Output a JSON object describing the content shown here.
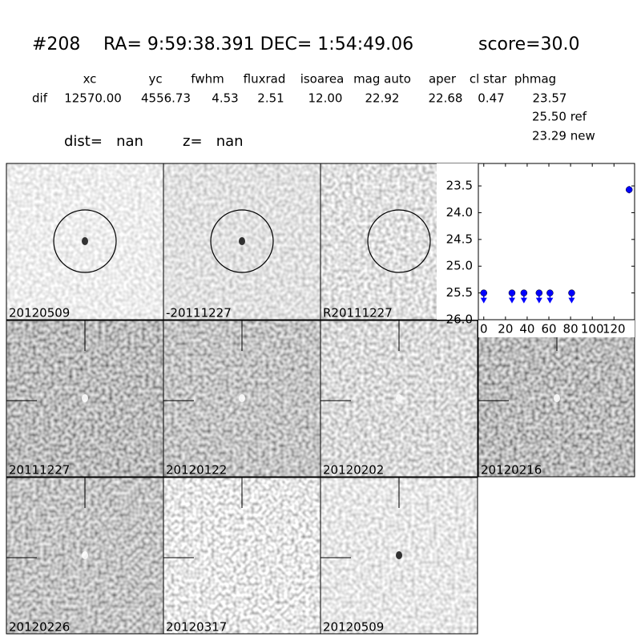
{
  "header": {
    "id": "#208",
    "coords": "RA= 9:59:38.391 DEC= 1:54:49.06",
    "score": "score=30.0"
  },
  "table": {
    "columns": [
      "xc",
      "yc",
      "fwhm",
      "fluxrad",
      "isoarea",
      "mag auto",
      "aper",
      "cl star",
      "phmag"
    ],
    "row_label": "dif",
    "values": [
      "12570.00",
      "4556.73",
      "4.53",
      "2.51",
      "12.00",
      "22.92",
      "22.68",
      "0.47",
      "23.57"
    ],
    "ref": "25.50 ref",
    "new": "23.29 new"
  },
  "dist": "dist=   nan",
  "z": "z=   nan",
  "panels": [
    {
      "label": "20120509",
      "color": "#000000"
    },
    {
      "label": "-20111227",
      "color": "#000000"
    },
    {
      "label": "R20111227",
      "color": "#000000"
    },
    {
      "label": "20111227",
      "color": "#000000"
    },
    {
      "label": "20120122",
      "color": "#000000"
    },
    {
      "label": "20120202",
      "color": "#000000"
    },
    {
      "label": "20120216",
      "color": "#000000"
    },
    {
      "label": "20120226",
      "color": "#000000"
    },
    {
      "label": "20120317",
      "color": "#000000"
    },
    {
      "label": "20120509",
      "color": "#ff0000"
    }
  ],
  "chart_data": {
    "type": "scatter",
    "xlim": [
      -5,
      139
    ],
    "ylim": [
      26.0,
      23.08
    ],
    "xticks": [
      0,
      20,
      40,
      60,
      80,
      100,
      120
    ],
    "yticks": [
      23.5,
      {
        "value": 24.0,
        "label": "24.0"
      },
      24.5,
      {
        "value": 25.0,
        "label": "25.0"
      },
      25.5,
      {
        "value": 26.0,
        "label": "26.0"
      }
    ],
    "series": [
      {
        "color": "#0000ff",
        "upper_limit": true,
        "x": [
          0,
          26,
          37,
          51,
          61,
          81
        ],
        "values": [
          25.5,
          25.5,
          25.5,
          25.5,
          25.5,
          25.5
        ]
      },
      {
        "color": "#0000ff",
        "x": [
          134
        ],
        "values": [
          23.57
        ],
        "errors": [
          0.07
        ]
      }
    ]
  }
}
